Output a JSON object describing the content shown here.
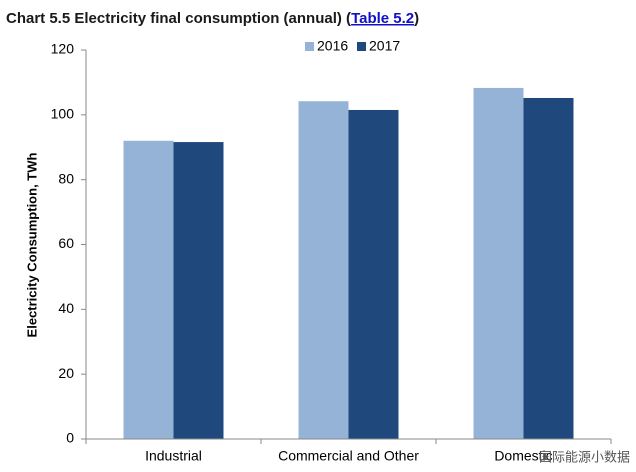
{
  "chart_data": {
    "type": "bar",
    "title": "Chart 5.5 Electricity final consumption (annual) (",
    "title_link": "Table 5.2",
    "title_end": ")",
    "y_label": "Electricity Consumption, TWh",
    "categories": [
      "Industrial",
      "Commercial and Other",
      "Domestic"
    ],
    "series": [
      {
        "name": "2016",
        "color": "#95b3d7",
        "values": [
          92,
          104.2,
          108.3
        ]
      },
      {
        "name": "2017",
        "color": "#1f497d",
        "values": [
          91.6,
          101.5,
          105.2
        ]
      }
    ],
    "ylim": [
      0,
      120
    ],
    "yticks": [
      0,
      20,
      40,
      60,
      80,
      100,
      120
    ],
    "grid": false,
    "legend": "top",
    "watermark": "国际能源小数据"
  }
}
